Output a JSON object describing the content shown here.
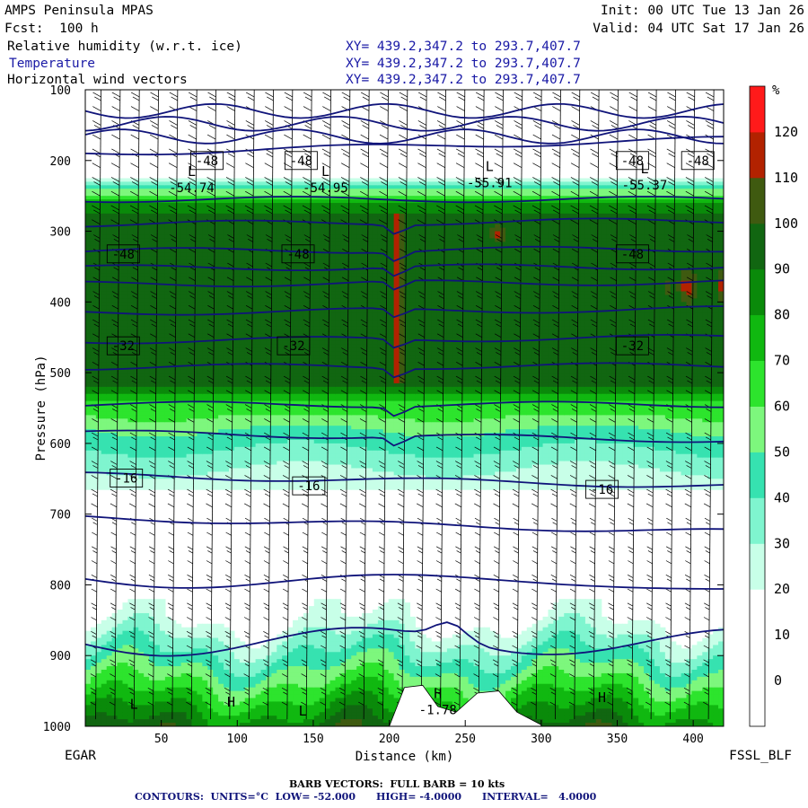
{
  "header": {
    "model": "AMPS Peninsula MPAS",
    "init": "Init: 00 UTC Tue 13 Jan 26",
    "fcst": "Fcst:  100 h",
    "valid": "Valid: 04 UTC Sat 17 Jan 26",
    "fields": [
      {
        "name": "Relative humidity (w.r.t. ice)",
        "xy": "XY= 439.2,347.2 to 293.7,407.7"
      },
      {
        "name": "Temperature",
        "xy": "XY= 439.2,347.2 to 293.7,407.7"
      },
      {
        "name": "Horizontal wind vectors",
        "xy": "XY= 439.2,347.2 to 293.7,407.7"
      }
    ]
  },
  "footer": {
    "left_station": "EGAR",
    "right_station": "FSSL_BLF",
    "barb_note": "BARB VECTORS:  FULL BARB = 10 kts",
    "contours": "CONTOURS:  UNITS=°C  LOW= -52.000      HIGH= -4.0000      INTERVAL=   4.0000"
  },
  "colors": {
    "contour": "#10147a",
    "rh_bands": [
      "#ffffff",
      "#ffffff",
      "#ffffff",
      "#c8ffe8",
      "#7ff5cf",
      "#36e2b0",
      "#7df77d",
      "#2de42d",
      "#10b810",
      "#0a8a0a",
      "#116611",
      "#3f5a10",
      "#b22200",
      "#ff1a1a"
    ],
    "terrain": "#ffffff"
  },
  "chart_data": {
    "type": "heatmap",
    "xlabel": "Distance (km)",
    "ylabel": "Pressure (hPa)",
    "xlim": [
      0,
      420
    ],
    "ylim": [
      1000,
      100
    ],
    "x_ticks": [
      50,
      100,
      150,
      200,
      250,
      300,
      350,
      400
    ],
    "y_ticks": [
      100,
      200,
      300,
      400,
      500,
      600,
      700,
      800,
      900,
      1000
    ],
    "colorbar": {
      "unit": "%",
      "levels": [
        0,
        10,
        20,
        30,
        40,
        50,
        60,
        70,
        80,
        90,
        100,
        110,
        120
      ],
      "labels": [
        "0",
        "10",
        "20",
        "30",
        "40",
        "50",
        "60",
        "70",
        "80",
        "90",
        "100",
        "110",
        "120"
      ]
    },
    "temperature_isotherms_hPa_at_edges": [
      {
        "t": -48,
        "p_left": 190,
        "p_right": 170
      },
      {
        "t": -48,
        "p_left": 255,
        "p_right": 255
      },
      {
        "t": -48,
        "p_left": 290,
        "p_right": 285
      },
      {
        "t": -48,
        "p_left": 328,
        "p_right": 325
      },
      {
        "t": -44,
        "p_left": 352,
        "p_right": 350
      },
      {
        "t": -40,
        "p_left": 375,
        "p_right": 372
      },
      {
        "t": -36,
        "p_left": 415,
        "p_right": 410
      },
      {
        "t": -32,
        "p_left": 455,
        "p_right": 450
      },
      {
        "t": -28,
        "p_left": 492,
        "p_right": 490
      },
      {
        "t": -24,
        "p_left": 545,
        "p_right": 545
      },
      {
        "t": -20,
        "p_left": 585,
        "p_right": 595
      },
      {
        "t": -16,
        "p_left": 645,
        "p_right": 660
      },
      {
        "t": -12,
        "p_left": 705,
        "p_right": 725
      },
      {
        "t": -8,
        "p_left": 790,
        "p_right": 800
      },
      {
        "t": -4,
        "p_left": 880,
        "p_right": 880
      }
    ],
    "contour_labels": [
      {
        "text": "-48",
        "x": 80,
        "p": 200
      },
      {
        "text": "-48",
        "x": 142,
        "p": 200
      },
      {
        "text": "-48",
        "x": 360,
        "p": 200
      },
      {
        "text": "-48",
        "x": 403,
        "p": 200
      },
      {
        "text": "-48",
        "x": 25,
        "p": 332
      },
      {
        "text": "-48",
        "x": 140,
        "p": 332
      },
      {
        "text": "-48",
        "x": 360,
        "p": 332
      },
      {
        "text": "-32",
        "x": 25,
        "p": 462
      },
      {
        "text": "-32",
        "x": 137,
        "p": 462
      },
      {
        "text": "-32",
        "x": 360,
        "p": 462
      },
      {
        "text": "-16",
        "x": 27,
        "p": 649
      },
      {
        "text": "-16",
        "x": 147,
        "p": 660
      },
      {
        "text": "-16",
        "x": 340,
        "p": 665
      }
    ],
    "extrema": [
      {
        "mark": "L",
        "value": "-54.74",
        "x": 70,
        "p": 222
      },
      {
        "mark": "L",
        "value": "-54.95",
        "x": 158,
        "p": 222
      },
      {
        "mark": "L",
        "value": "-55.91",
        "x": 266,
        "p": 215
      },
      {
        "mark": "L",
        "value": "-55.37",
        "x": 368,
        "p": 218
      },
      {
        "mark": "H",
        "value": "-1.78",
        "x": 232,
        "p": 960
      },
      {
        "mark": "L",
        "value": "",
        "x": 32,
        "p": 975
      },
      {
        "mark": "H",
        "value": "",
        "x": 96,
        "p": 972
      },
      {
        "mark": "L",
        "value": "",
        "x": 143,
        "p": 985
      },
      {
        "mark": "H",
        "value": "",
        "x": 340,
        "p": 966
      }
    ],
    "terrain_surface_hPa": [
      {
        "x": 200,
        "p": 1000
      },
      {
        "x": 210,
        "p": 945
      },
      {
        "x": 222,
        "p": 942
      },
      {
        "x": 232,
        "p": 972
      },
      {
        "x": 244,
        "p": 980
      },
      {
        "x": 258,
        "p": 953
      },
      {
        "x": 272,
        "p": 950
      },
      {
        "x": 284,
        "p": 980
      },
      {
        "x": 300,
        "p": 998
      }
    ]
  }
}
